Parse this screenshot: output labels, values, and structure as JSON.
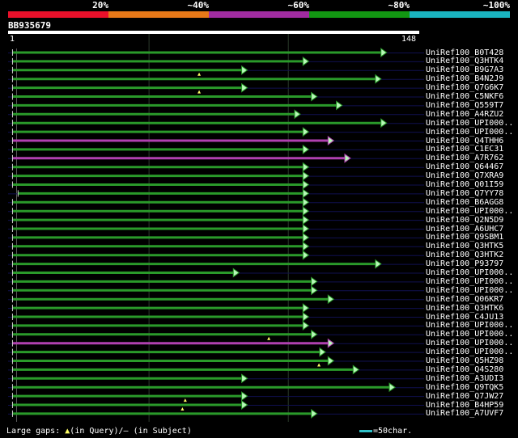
{
  "header": {
    "scale_labels": [
      "20%",
      "~40%",
      "~60%",
      "~80%",
      "~100%"
    ],
    "scale_colors": [
      "#e8102a",
      "#e67818",
      "#a02ca0",
      "#129612",
      "#1ab4c0"
    ],
    "query_id": "BB935679",
    "query_start": "1",
    "query_end": "148"
  },
  "colors": {
    "green": "#2a9a2a",
    "magenta": "#b040b0",
    "arrow_fill": "#b8f8b8",
    "gap_marker": "#ffff66",
    "row_line": "#101050",
    "query_bar": "#ffffff"
  },
  "hits": [
    {
      "label": "UniRef100_B0T428",
      "start": 2,
      "end": 136,
      "color": "green",
      "gap": null
    },
    {
      "label": "UniRef100_Q3HTK4",
      "start": 2,
      "end": 108,
      "color": "green",
      "gap": null
    },
    {
      "label": "UniRef100_B9G7A3",
      "start": 2,
      "end": 86,
      "color": "green",
      "gap": 69
    },
    {
      "label": "UniRef100_B4N2J9",
      "start": 2,
      "end": 134,
      "color": "green",
      "gap": null
    },
    {
      "label": "UniRef100_Q7G6K7",
      "start": 2,
      "end": 86,
      "color": "green",
      "gap": 69
    },
    {
      "label": "UniRef100_C5NKF6",
      "start": 2,
      "end": 111,
      "color": "green",
      "gap": null
    },
    {
      "label": "UniRef100_Q559T7",
      "start": 2,
      "end": 120,
      "color": "green",
      "gap": null
    },
    {
      "label": "UniRef100_A4RZU2",
      "start": 2,
      "end": 105,
      "color": "green",
      "gap": null
    },
    {
      "label": "UniRef100_UPI000..",
      "start": 2,
      "end": 136,
      "color": "green",
      "gap": null
    },
    {
      "label": "UniRef100_UPI000..",
      "start": 2,
      "end": 108,
      "color": "green",
      "gap": null
    },
    {
      "label": "UniRef100_Q4THH6",
      "start": 2,
      "end": 117,
      "color": "magenta",
      "gap": null
    },
    {
      "label": "UniRef100_C1EC31",
      "start": 2,
      "end": 108,
      "color": "green",
      "gap": null
    },
    {
      "label": "UniRef100_A7R762",
      "start": 2,
      "end": 123,
      "color": "magenta",
      "gap": null
    },
    {
      "label": "UniRef100_Q64467",
      "start": 2,
      "end": 108,
      "color": "green",
      "gap": null
    },
    {
      "label": "UniRef100_Q7XRA9",
      "start": 2,
      "end": 108,
      "color": "green",
      "gap": null
    },
    {
      "label": "UniRef100_Q01I59",
      "start": 2,
      "end": 108,
      "color": "green",
      "gap": null
    },
    {
      "label": "UniRef100_Q7YY78",
      "start": 4,
      "end": 108,
      "color": "green",
      "gap": null
    },
    {
      "label": "UniRef100_B6AGG8",
      "start": 2,
      "end": 108,
      "color": "green",
      "gap": null
    },
    {
      "label": "UniRef100_UPI000..",
      "start": 2,
      "end": 108,
      "color": "green",
      "gap": null
    },
    {
      "label": "UniRef100_Q2N5D9",
      "start": 2,
      "end": 108,
      "color": "green",
      "gap": null
    },
    {
      "label": "UniRef100_A6UHC7",
      "start": 2,
      "end": 108,
      "color": "green",
      "gap": null
    },
    {
      "label": "UniRef100_Q9SBM1",
      "start": 2,
      "end": 108,
      "color": "green",
      "gap": null
    },
    {
      "label": "UniRef100_Q3HTK5",
      "start": 2,
      "end": 108,
      "color": "green",
      "gap": null
    },
    {
      "label": "UniRef100_Q3HTK2",
      "start": 2,
      "end": 108,
      "color": "green",
      "gap": null
    },
    {
      "label": "UniRef100_P93797",
      "start": 2,
      "end": 134,
      "color": "green",
      "gap": null
    },
    {
      "label": "UniRef100_UPI000..",
      "start": 2,
      "end": 83,
      "color": "green",
      "gap": null
    },
    {
      "label": "UniRef100_UPI000..",
      "start": 2,
      "end": 111,
      "color": "green",
      "gap": null
    },
    {
      "label": "UniRef100_UPI000..",
      "start": 2,
      "end": 111,
      "color": "green",
      "gap": null
    },
    {
      "label": "UniRef100_Q06KR7",
      "start": 2,
      "end": 117,
      "color": "green",
      "gap": null
    },
    {
      "label": "UniRef100_Q3HTK6",
      "start": 2,
      "end": 108,
      "color": "green",
      "gap": null
    },
    {
      "label": "UniRef100_C4JU13",
      "start": 2,
      "end": 108,
      "color": "green",
      "gap": null
    },
    {
      "label": "UniRef100_UPI000..",
      "start": 2,
      "end": 108,
      "color": "green",
      "gap": null
    },
    {
      "label": "UniRef100_UPI000..",
      "start": 2,
      "end": 111,
      "color": "green",
      "gap": 94
    },
    {
      "label": "UniRef100_UPI000..",
      "start": 2,
      "end": 117,
      "color": "magenta",
      "gap": null
    },
    {
      "label": "UniRef100_UPI000..",
      "start": 2,
      "end": 114,
      "color": "green",
      "gap": null
    },
    {
      "label": "UniRef100_Q5HZ98",
      "start": 2,
      "end": 117,
      "color": "green",
      "gap": 112
    },
    {
      "label": "UniRef100_Q4S280",
      "start": 2,
      "end": 126,
      "color": "green",
      "gap": null
    },
    {
      "label": "UniRef100_A3UDI3",
      "start": 2,
      "end": 86,
      "color": "green",
      "gap": null
    },
    {
      "label": "UniRef100_Q9TQK5",
      "start": 2,
      "end": 139,
      "color": "green",
      "gap": null
    },
    {
      "label": "UniRef100_Q7JW27",
      "start": 2,
      "end": 86,
      "color": "green",
      "gap": 64
    },
    {
      "label": "UniRef100_B4HP59",
      "start": 2,
      "end": 86,
      "color": "green",
      "gap": 63
    },
    {
      "label": "UniRef100_A7UVF7",
      "start": 2,
      "end": 111,
      "color": "green",
      "gap": null
    }
  ],
  "legend": {
    "prefix": "Large gaps:",
    "query_marker": "▲",
    "query_text": "(in Query)/",
    "subject_marker": "—",
    "subject_text": "(in Subject)",
    "scale_text": "=50char."
  }
}
